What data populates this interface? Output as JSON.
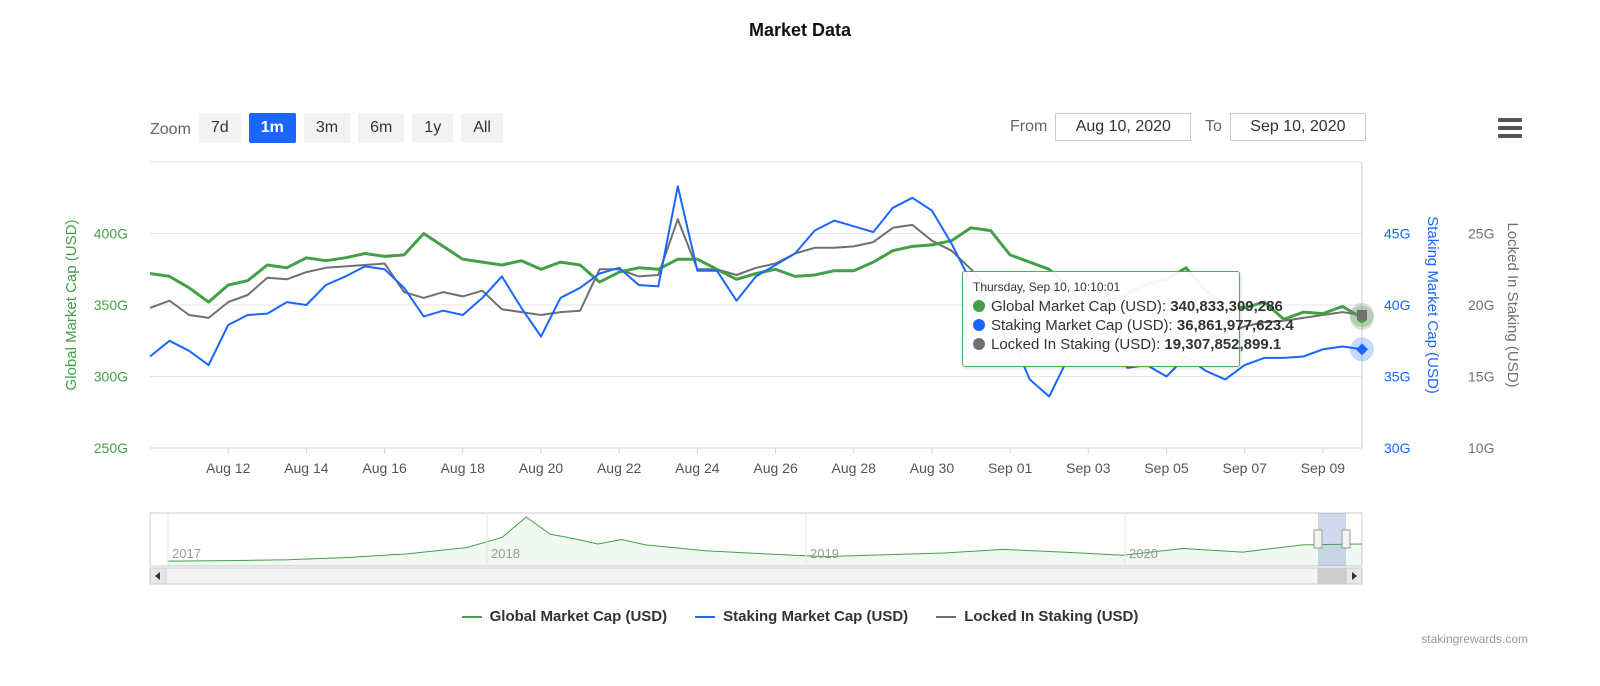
{
  "title": "Market Data",
  "zoom": {
    "label": "Zoom",
    "buttons": [
      "7d",
      "1m",
      "3m",
      "6m",
      "1y",
      "All"
    ],
    "active": "1m"
  },
  "range": {
    "from_label": "From",
    "from_value": "Aug 10, 2020",
    "to_label": "To",
    "to_value": "Sep 10, 2020"
  },
  "menu_icon": "hamburger-menu-icon",
  "credit": "stakingrewards.com",
  "colors": {
    "global": "#43a047",
    "staking": "#1a66ff",
    "locked": "#707070",
    "accent": "#1a66ff"
  },
  "tooltip": {
    "header": "Thursday, Sep 10, 10:10:01",
    "rows": [
      {
        "label": "Global Market Cap (USD): ",
        "value": "340,833,309,286",
        "color": "#43a047"
      },
      {
        "label": "Staking Market Cap (USD): ",
        "value": "36,861,977,623.4",
        "color": "#1a66ff"
      },
      {
        "label": "Locked In Staking (USD): ",
        "value": "19,307,852,899.1",
        "color": "#707070"
      }
    ]
  },
  "chart_data": {
    "type": "line",
    "x_start": "Aug 10",
    "x_end": "Sep 10",
    "x_ticks": [
      "Aug 12",
      "Aug 14",
      "Aug 16",
      "Aug 18",
      "Aug 20",
      "Aug 22",
      "Aug 24",
      "Aug 26",
      "Aug 28",
      "Aug 30",
      "Sep 01",
      "Sep 03",
      "Sep 05",
      "Sep 07",
      "Sep 09"
    ],
    "axes": [
      {
        "id": "global",
        "title": "Global Market Cap (USD)",
        "ticks": [
          "250G",
          "300G",
          "350G",
          "400G"
        ],
        "range": [
          250,
          450
        ],
        "unit": "G"
      },
      {
        "id": "staking",
        "title": "Staking Market Cap (USD)",
        "ticks": [
          "30G",
          "35G",
          "40G",
          "45G"
        ],
        "range": [
          30,
          50
        ],
        "unit": "G"
      },
      {
        "id": "locked",
        "title": "Locked In Staking (USD)",
        "ticks": [
          "10G",
          "15G",
          "20G",
          "25G"
        ],
        "range": [
          10,
          30
        ],
        "unit": "G"
      }
    ],
    "series": [
      {
        "name": "Global Market Cap (USD)",
        "axis": "global",
        "color": "#43a047",
        "x": [
          0,
          0.5,
          1,
          1.5,
          2,
          2.5,
          3,
          3.5,
          4,
          4.5,
          5,
          5.5,
          6,
          6.5,
          7,
          7.5,
          8,
          8.5,
          9,
          9.5,
          10,
          10.5,
          11,
          11.5,
          12,
          12.5,
          13,
          13.5,
          14,
          14.5,
          15,
          15.5,
          16,
          16.5,
          17,
          17.5,
          18,
          18.5,
          19,
          19.5,
          20,
          20.5,
          21,
          21.5,
          22,
          22.5,
          23,
          23.5,
          24,
          24.5,
          25,
          25.5,
          26,
          26.5,
          27,
          27.5,
          28,
          28.5,
          29,
          29.5,
          30,
          30.5,
          31
        ],
        "y": [
          372,
          370,
          362,
          352,
          364,
          367,
          378,
          376,
          383,
          381,
          383,
          386,
          384,
          385,
          400,
          391,
          382,
          380,
          378,
          381,
          375,
          380,
          378,
          366,
          373,
          376,
          375,
          382,
          382,
          375,
          368,
          372,
          375,
          370,
          371,
          374,
          374,
          380,
          388,
          391,
          392,
          395,
          404,
          402,
          385,
          380,
          375,
          362,
          346,
          352,
          358,
          365,
          368,
          376,
          360,
          350,
          348,
          352,
          340,
          345,
          344,
          349,
          341
        ]
      },
      {
        "name": "Staking Market Cap (USD)",
        "axis": "staking",
        "color": "#1a66ff",
        "x": [
          0,
          0.5,
          1,
          1.5,
          2,
          2.5,
          3,
          3.5,
          4,
          4.5,
          5,
          5.5,
          6,
          6.5,
          7,
          7.5,
          8,
          8.5,
          9,
          9.5,
          10,
          10.5,
          11,
          11.5,
          12,
          12.5,
          13,
          13.5,
          14,
          14.5,
          15,
          15.5,
          16,
          16.5,
          17,
          17.5,
          18,
          18.5,
          19,
          19.5,
          20,
          20.5,
          21,
          21.5,
          22,
          22.5,
          23,
          23.5,
          24,
          24.5,
          25,
          25.5,
          26,
          26.5,
          27,
          27.5,
          28,
          28.5,
          29,
          29.5,
          30,
          30.5,
          31
        ],
        "y": [
          36.4,
          37.5,
          36.8,
          35.8,
          38.6,
          39.3,
          39.4,
          40.2,
          40.0,
          41.4,
          42.0,
          42.7,
          42.5,
          41.2,
          39.2,
          39.6,
          39.3,
          40.5,
          42.0,
          39.8,
          37.8,
          40.5,
          41.2,
          42.2,
          42.6,
          41.4,
          41.3,
          48.3,
          42.4,
          42.4,
          40.3,
          42.0,
          42.8,
          43.6,
          45.2,
          45.9,
          45.5,
          45.1,
          46.8,
          47.5,
          46.6,
          44.3,
          41.6,
          40.0,
          38.0,
          34.8,
          33.6,
          36.4,
          38.0,
          37.2,
          35.6,
          35.8,
          35.0,
          36.4,
          35.4,
          34.8,
          35.8,
          36.3,
          36.3,
          36.4,
          36.9,
          37.1,
          36.9
        ]
      },
      {
        "name": "Locked In Staking (USD)",
        "axis": "locked",
        "color": "#707070",
        "x": [
          0,
          0.5,
          1,
          1.5,
          2,
          2.5,
          3,
          3.5,
          4,
          4.5,
          5,
          5.5,
          6,
          6.5,
          7,
          7.5,
          8,
          8.5,
          9,
          9.5,
          10,
          10.5,
          11,
          11.5,
          12,
          12.5,
          13,
          13.5,
          14,
          14.5,
          15,
          15.5,
          16,
          16.5,
          17,
          17.5,
          18,
          18.5,
          19,
          19.5,
          20,
          20.5,
          21,
          21.5,
          22,
          22.5,
          23,
          23.5,
          24,
          24.5,
          25,
          25.5,
          26,
          26.5,
          27,
          27.5,
          28,
          28.5,
          29,
          29.5,
          30,
          30.5,
          31
        ],
        "y": [
          19.8,
          20.3,
          19.3,
          19.1,
          20.2,
          20.7,
          21.9,
          21.8,
          22.3,
          22.6,
          22.7,
          22.8,
          22.9,
          20.9,
          20.5,
          20.9,
          20.6,
          21.0,
          19.7,
          19.5,
          19.3,
          19.5,
          19.6,
          22.5,
          22.5,
          22.0,
          22.1,
          26.0,
          22.5,
          22.5,
          22.1,
          22.6,
          22.9,
          23.6,
          24.0,
          24.0,
          24.1,
          24.4,
          25.4,
          25.6,
          24.5,
          23.8,
          22.5,
          21.0,
          19.5,
          18.0,
          17.5,
          17.9,
          18.2,
          18.4,
          17.8,
          17.5,
          17.2,
          17.4,
          17.7,
          18.0,
          18.5,
          18.8,
          18.9,
          19.1,
          19.3,
          19.5,
          19.3
        ]
      }
    ],
    "navigator": {
      "years": [
        "2017",
        "2018",
        "2019",
        "2020"
      ],
      "x": [
        0,
        0.05,
        0.1,
        0.15,
        0.2,
        0.25,
        0.28,
        0.3,
        0.32,
        0.34,
        0.36,
        0.38,
        0.4,
        0.45,
        0.5,
        0.55,
        0.6,
        0.65,
        0.7,
        0.75,
        0.8,
        0.85,
        0.9,
        0.95,
        1.0
      ],
      "y": [
        0.02,
        0.03,
        0.05,
        0.1,
        0.18,
        0.32,
        0.55,
        1.0,
        0.62,
        0.52,
        0.4,
        0.5,
        0.38,
        0.25,
        0.18,
        0.12,
        0.16,
        0.2,
        0.28,
        0.22,
        0.15,
        0.3,
        0.22,
        0.38,
        0.4
      ]
    }
  }
}
